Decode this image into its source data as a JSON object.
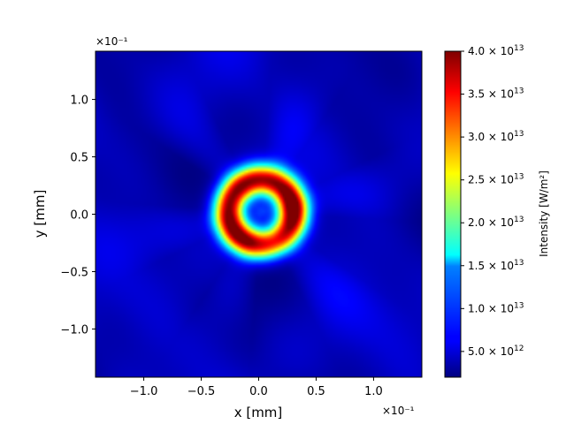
{
  "chart_data": {
    "type": "heatmap",
    "xlabel": "x [mm]",
    "ylabel": "y [mm]",
    "x_offset_label": "×10⁻¹",
    "y_offset_label": "×10⁻¹",
    "xlim": [
      -1.42,
      1.42
    ],
    "ylim": [
      -1.42,
      1.42
    ],
    "x_ticks": [
      -1.0,
      -0.5,
      0.0,
      0.5,
      1.0
    ],
    "x_tick_labels": [
      "−1.0",
      "−0.5",
      "0.0",
      "0.5",
      "1.0"
    ],
    "y_ticks": [
      -1.0,
      -0.5,
      0.0,
      0.5,
      1.0
    ],
    "y_tick_labels": [
      "−1.0",
      "−0.5",
      "0.0",
      "0.5",
      "1.0"
    ],
    "colormap": "jet",
    "colorbar": {
      "label": "Intensity [W/m²]",
      "range": [
        2000000000000.0,
        40000000000000.0
      ],
      "ticks": [
        5000000000000.0,
        10000000000000.0,
        15000000000000.0,
        20000000000000.0,
        25000000000000.0,
        30000000000000.0,
        35000000000000.0,
        40000000000000.0
      ],
      "tick_mantissas": [
        "5.0",
        "1.0",
        "1.5",
        "2.0",
        "2.5",
        "3.0",
        "3.5",
        "4.0"
      ],
      "tick_exponents": [
        "12",
        "13",
        "13",
        "13",
        "13",
        "13",
        "13",
        "13"
      ]
    },
    "field": {
      "description_of_shape": "annular ring",
      "ring_center": [
        0.02,
        0.02
      ],
      "ring_radius": 0.28,
      "ring_width": 0.13,
      "peak_intensity": 40000000000000.0,
      "center_intensity": 13000000000000.0,
      "background_intensity": 4000000000000.0
    }
  }
}
